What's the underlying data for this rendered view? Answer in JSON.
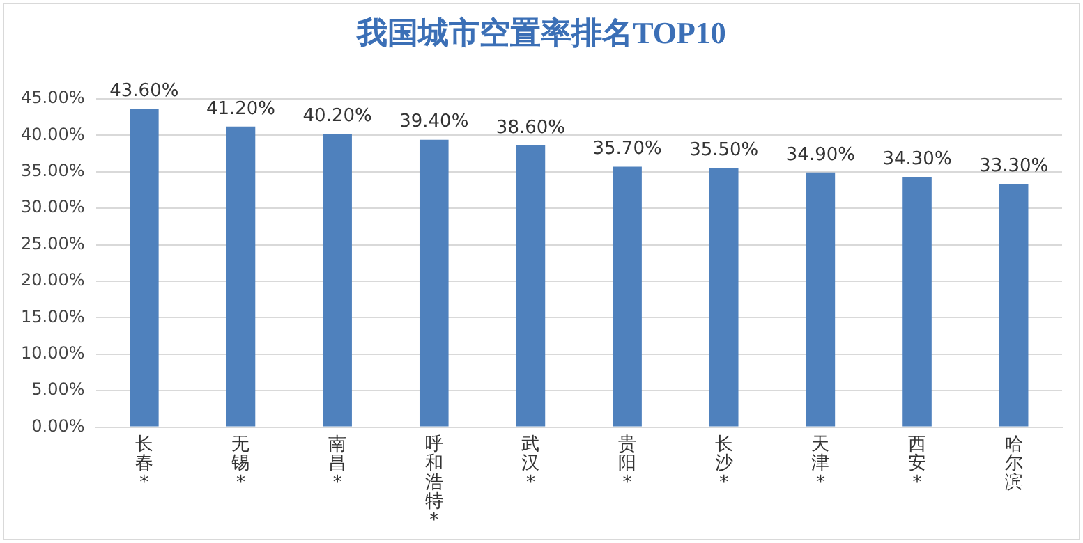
{
  "chart_data": {
    "type": "bar",
    "title": "我国城市空置率排名TOP10",
    "categories": [
      "长春*",
      "无锡*",
      "南昌*",
      "呼和浩特*",
      "武汉*",
      "贵阳*",
      "长沙*",
      "天津*",
      "西安*",
      "哈尔滨"
    ],
    "values": [
      43.6,
      41.2,
      40.2,
      39.4,
      38.6,
      35.7,
      35.5,
      34.9,
      34.3,
      33.3
    ],
    "value_labels": [
      "43.60%",
      "41.20%",
      "40.20%",
      "39.40%",
      "38.60%",
      "35.70%",
      "35.50%",
      "34.90%",
      "34.30%",
      "33.30%"
    ],
    "color": "#4f81bd",
    "ylim": [
      0,
      45
    ],
    "yticks": [
      {
        "value": 0,
        "label": "0.00%"
      },
      {
        "value": 5,
        "label": "5.00%"
      },
      {
        "value": 10,
        "label": "10.00%"
      },
      {
        "value": 15,
        "label": "15.00%"
      },
      {
        "value": 20,
        "label": "20.00%"
      },
      {
        "value": 25,
        "label": "25.00%"
      },
      {
        "value": 30,
        "label": "30.00%"
      },
      {
        "value": 35,
        "label": "35.00%"
      },
      {
        "value": 40,
        "label": "40.00%"
      },
      {
        "value": 45,
        "label": "45.00%"
      }
    ],
    "grid": "y"
  }
}
